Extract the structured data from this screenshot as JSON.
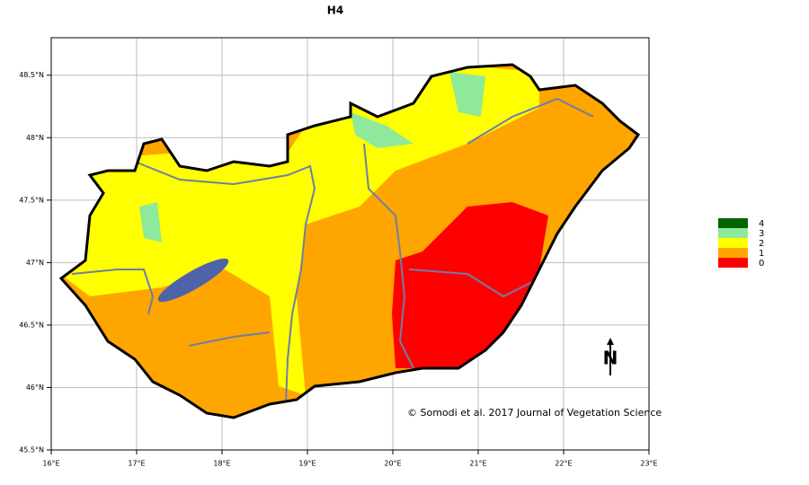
{
  "chart_data": {
    "type": "map",
    "title": "H4",
    "xlim": [
      16,
      23
    ],
    "ylim": [
      45.5,
      48.8
    ],
    "xticks": [
      {
        "value": 16,
        "label": "16°E"
      },
      {
        "value": 17,
        "label": "17°E"
      },
      {
        "value": 18,
        "label": "18°E"
      },
      {
        "value": 19,
        "label": "19°E"
      },
      {
        "value": 20,
        "label": "20°E"
      },
      {
        "value": 21,
        "label": "21°E"
      },
      {
        "value": 22,
        "label": "22°E"
      },
      {
        "value": 23,
        "label": "23°E"
      }
    ],
    "yticks": [
      {
        "value": 45.5,
        "label": "45.5°N"
      },
      {
        "value": 46,
        "label": "46°N"
      },
      {
        "value": 46.5,
        "label": "46.5°N"
      },
      {
        "value": 47,
        "label": "47°N"
      },
      {
        "value": 47.5,
        "label": "47.5°N"
      },
      {
        "value": 48,
        "label": "48°N"
      },
      {
        "value": 48.5,
        "label": "48.5°N"
      }
    ],
    "grid": true,
    "legend": {
      "classes": [
        "4",
        "3",
        "2",
        "1",
        "0"
      ],
      "colors": [
        "#006400",
        "#8ee99a",
        "#ffff00",
        "#ffa500",
        "#ff0000"
      ]
    },
    "annotation": "© Somodi et al. 2017 Journal of Vegetation Science",
    "north_label": "N"
  }
}
